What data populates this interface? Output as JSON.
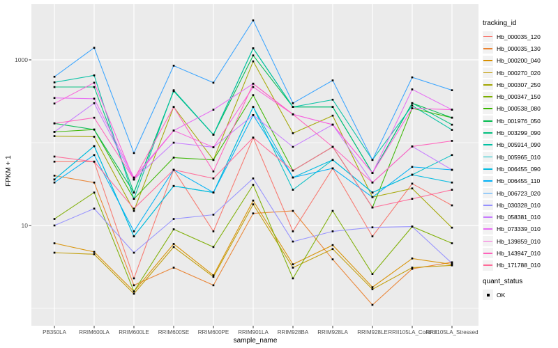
{
  "chart_data": {
    "type": "line",
    "title": "",
    "xlabel": "sample_name",
    "ylabel": "FPKM + 1",
    "y_scale": "log10",
    "y_ticks": [
      "1000",
      "10"
    ],
    "y_tick_values": [
      1000,
      10
    ],
    "y_major_gridlines": [
      1000,
      10
    ],
    "y_minor_gridlines": [
      100,
      1
    ],
    "ylim": [
      0.65,
      4400
    ],
    "grid": "white-on-gray",
    "legend_position": "right",
    "point_shape": "square",
    "point_color": "#000000",
    "panel_bg": "#ebebeb",
    "grid_color": "#ffffff",
    "categories": [
      "PB350LA",
      "RRIM600LA",
      "RRIM600LE",
      "RRIM600SE",
      "RRIM600PE",
      "RRIM901LA",
      "RRIM928BA",
      "RRIM928LA",
      "RRIM928LE",
      "RRII105LA_Control",
      "RRII105LA_Stressed"
    ],
    "series": [
      {
        "name": "Hb_000035_120",
        "color": "#F8766D",
        "values": [
          59,
          59,
          2.3,
          47,
          8.5,
          115,
          8.5,
          49,
          7.4,
          32,
          17.5
        ]
      },
      {
        "name": "Hb_000035_130",
        "color": "#EA8331",
        "values": [
          40,
          33,
          1.9,
          3.1,
          1.9,
          14,
          15,
          3.9,
          1.1,
          3.0,
          3.6
        ]
      },
      {
        "name": "Hb_000200_040",
        "color": "#D89000",
        "values": [
          6.1,
          4.8,
          1.6,
          6.0,
          2.5,
          20,
          3.4,
          5.8,
          1.8,
          4.0,
          3.4
        ]
      },
      {
        "name": "Hb_000270_020",
        "color": "#C09B00",
        "values": [
          4.7,
          4.5,
          1.5,
          5.5,
          2.4,
          18,
          3.1,
          5.2,
          1.7,
          3.1,
          3.3
        ]
      },
      {
        "name": "Hb_000307_250",
        "color": "#A3A500",
        "values": [
          120,
          118,
          15,
          270,
          62,
          960,
          130,
          212,
          22,
          28,
          9.4
        ]
      },
      {
        "name": "Hb_000347_150",
        "color": "#7CAE00",
        "values": [
          12,
          25,
          1.6,
          9,
          5.5,
          31,
          2.3,
          15,
          2.6,
          9.7,
          6.1
        ]
      },
      {
        "name": "Hb_000538_080",
        "color": "#39B600",
        "values": [
          135,
          144,
          21,
          66,
          62,
          375,
          46,
          89,
          16.5,
          260,
          200
        ]
      },
      {
        "name": "Hb_001976_050",
        "color": "#00BB4E",
        "values": [
          171,
          144,
          25,
          420,
          125,
          1130,
          270,
          270,
          43,
          300,
          200
        ]
      },
      {
        "name": "Hb_003299_090",
        "color": "#00BF7D",
        "values": [
          470,
          470,
          25,
          420,
          125,
          1380,
          270,
          270,
          43,
          300,
          165
        ]
      },
      {
        "name": "Hb_005914_090",
        "color": "#00C1A3",
        "values": [
          535,
          650,
          21,
          430,
          125,
          1380,
          270,
          330,
          62,
          280,
          143
        ]
      },
      {
        "name": "Hb_005965_010",
        "color": "#00BFC4",
        "values": [
          36,
          91,
          7.4,
          30,
          25,
          270,
          27,
          62,
          25,
          41,
          71
        ]
      },
      {
        "name": "Hb_006455_090",
        "color": "#00BAE0",
        "values": [
          36,
          91,
          7.4,
          30,
          25,
          270,
          38,
          62,
          25,
          41,
          33
        ]
      },
      {
        "name": "Hb_006455_110",
        "color": "#00B0F6",
        "values": [
          33,
          71,
          8.5,
          47,
          25,
          215,
          38,
          49,
          22,
          51,
          47
        ]
      },
      {
        "name": "Hb_006723_020",
        "color": "#35A2FF",
        "values": [
          625,
          1400,
          75,
          850,
          530,
          3000,
          300,
          565,
          62,
          615,
          430
        ]
      },
      {
        "name": "Hb_030328_010",
        "color": "#9590FF",
        "values": [
          10,
          16,
          4.7,
          12,
          13.5,
          37,
          6.4,
          8.5,
          9.5,
          9.7,
          3.5
        ]
      },
      {
        "name": "Hb_058381_010",
        "color": "#C77CFF",
        "values": [
          135,
          300,
          36,
          100,
          88,
          215,
          89,
          165,
          33,
          90,
          47
        ]
      },
      {
        "name": "Hb_073339_010",
        "color": "#E76BF3",
        "values": [
          347,
          340,
          38,
          140,
          250,
          515,
          220,
          165,
          43,
          440,
          250
        ]
      },
      {
        "name": "Hb_139859_010",
        "color": "#FA62DB",
        "values": [
          297,
          530,
          36,
          140,
          88,
          470,
          220,
          165,
          43,
          260,
          250
        ]
      },
      {
        "name": "Hb_143947_010",
        "color": "#FF62BC",
        "values": [
          171,
          200,
          36,
          270,
          45,
          515,
          220,
          89,
          33,
          90,
          105
        ]
      },
      {
        "name": "Hb_171788_010",
        "color": "#FF6A98",
        "values": [
          68,
          59,
          16,
          47,
          37,
          115,
          46,
          89,
          16.5,
          21,
          27
        ]
      }
    ]
  },
  "legend": {
    "tracking_title": "tracking_id",
    "quant_title": "quant_status",
    "quant_items": [
      {
        "label": "OK"
      }
    ]
  }
}
